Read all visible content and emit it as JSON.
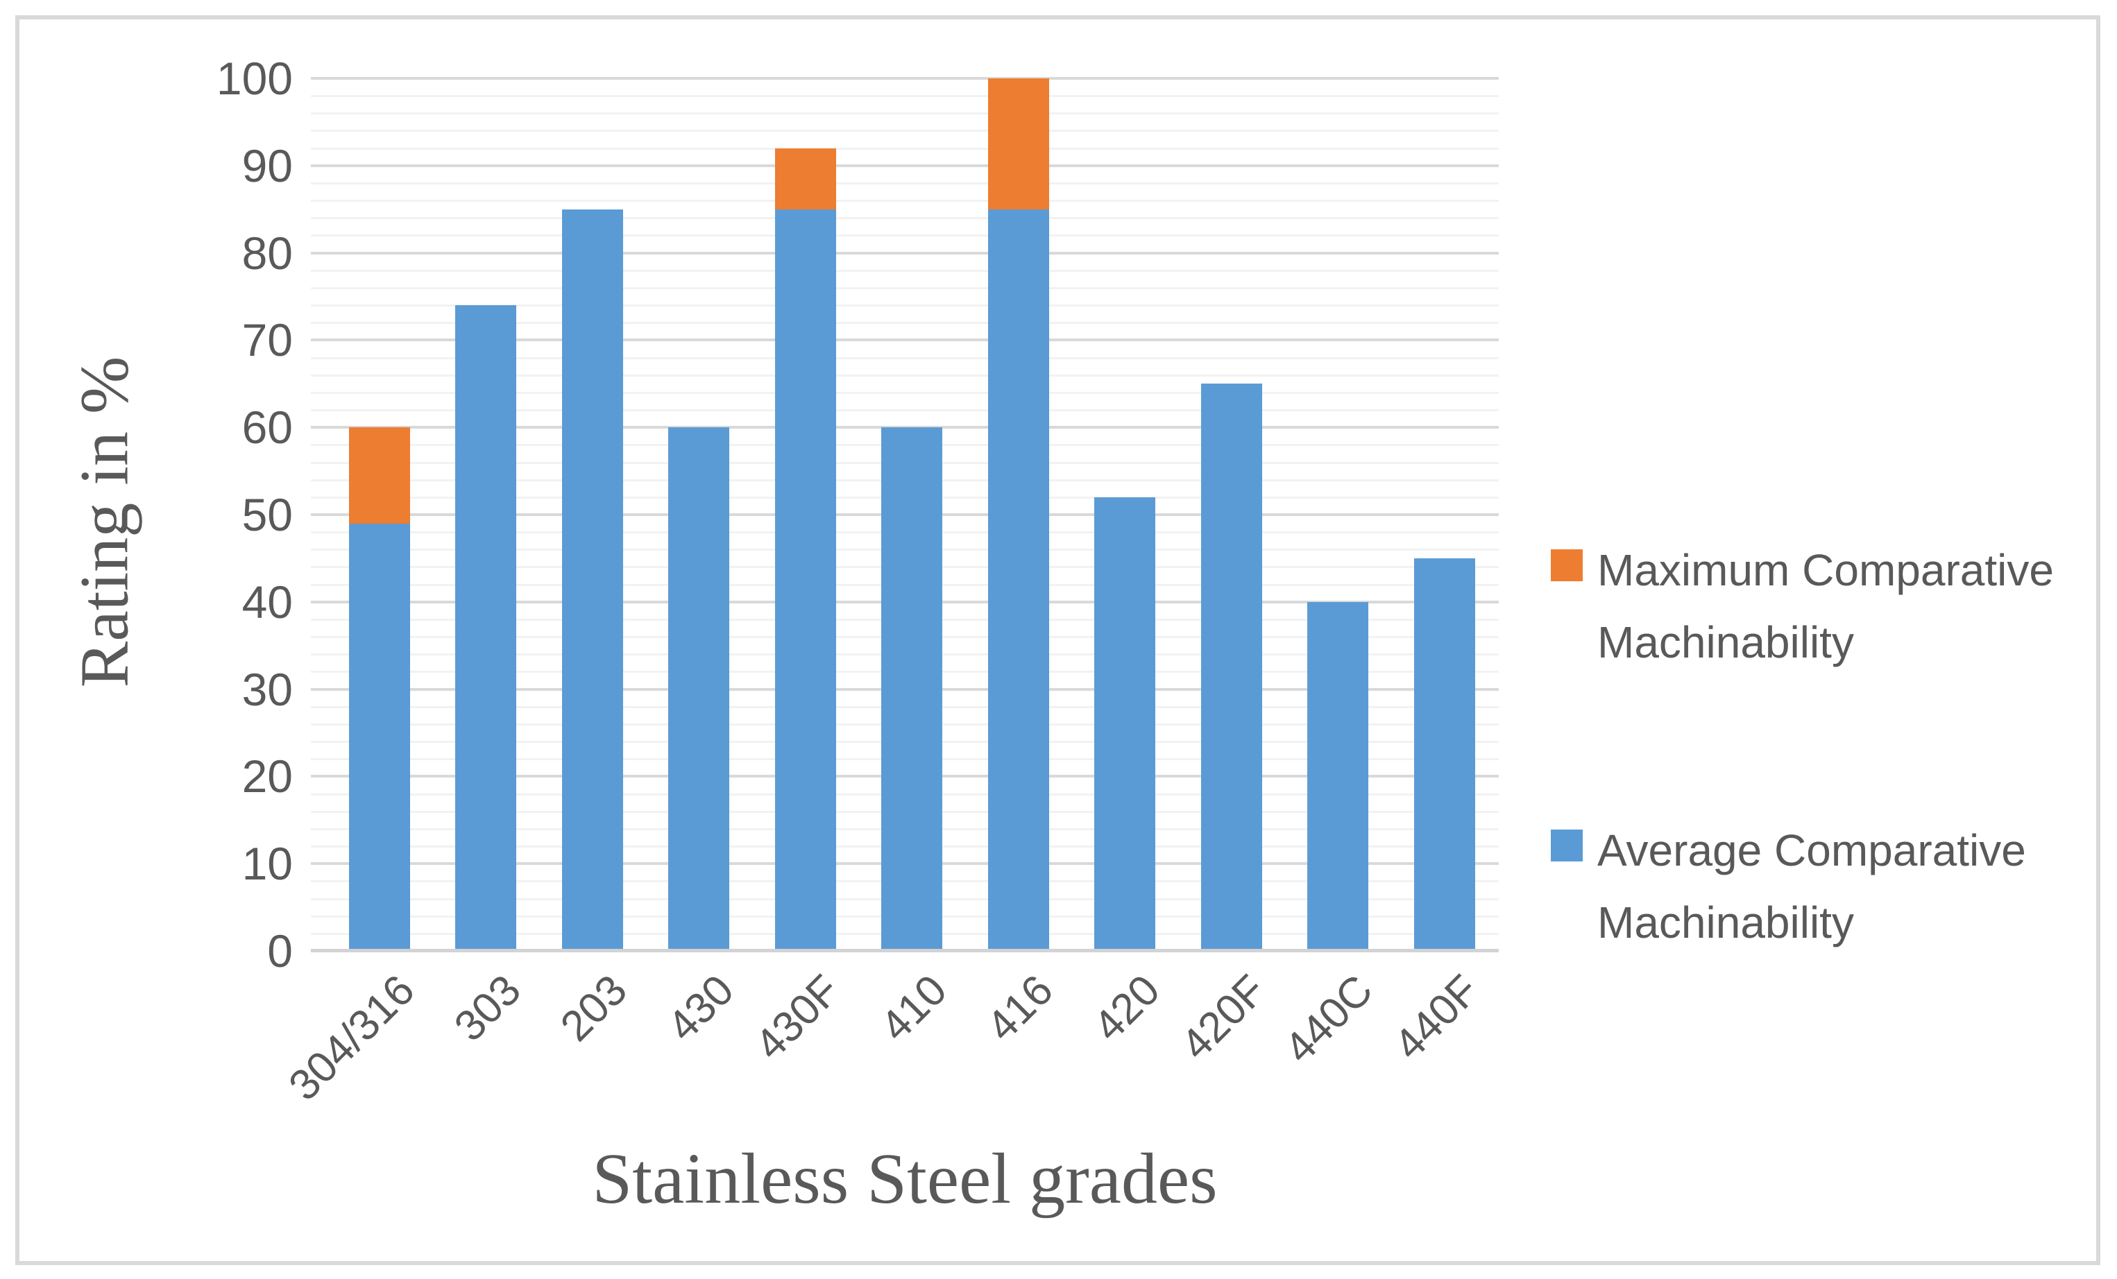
{
  "figure": {
    "y_axis_title": "Rating in %",
    "x_axis_title": "Stainless Steel grades"
  },
  "legend": [
    {
      "name": "maximum",
      "label": "Maximum Comparative Machinability",
      "color": "#ED7D31",
      "swatch": "orange-square"
    },
    {
      "name": "average",
      "label": "Average Comparative Machinability",
      "color": "#5B9BD5",
      "swatch": "blue-square"
    }
  ],
  "chart_data": {
    "type": "bar",
    "stacked": true,
    "title": "",
    "xlabel": "Stainless Steel grades",
    "ylabel": "Rating in %",
    "ylim": [
      0,
      100
    ],
    "y_ticks": [
      0,
      10,
      20,
      30,
      40,
      50,
      60,
      70,
      80,
      90,
      100
    ],
    "minor_grid_step": 2,
    "grid": "on",
    "legend_position": "right",
    "categories": [
      "304/316",
      "303",
      "203",
      "430",
      "430F",
      "410",
      "416",
      "420",
      "420F",
      "440C",
      "440F"
    ],
    "series": [
      {
        "name": "Average Comparative Machinability",
        "color": "#5B9BD5",
        "values": [
          49,
          74,
          85,
          60,
          85,
          60,
          85,
          52,
          65,
          40,
          45
        ]
      },
      {
        "name": "Maximum Comparative Machinability",
        "color": "#ED7D31",
        "values": [
          60,
          null,
          null,
          null,
          92,
          null,
          100,
          null,
          null,
          null,
          null
        ],
        "note": "total bar top where an orange segment is visible; equals average elsewhere"
      }
    ]
  }
}
